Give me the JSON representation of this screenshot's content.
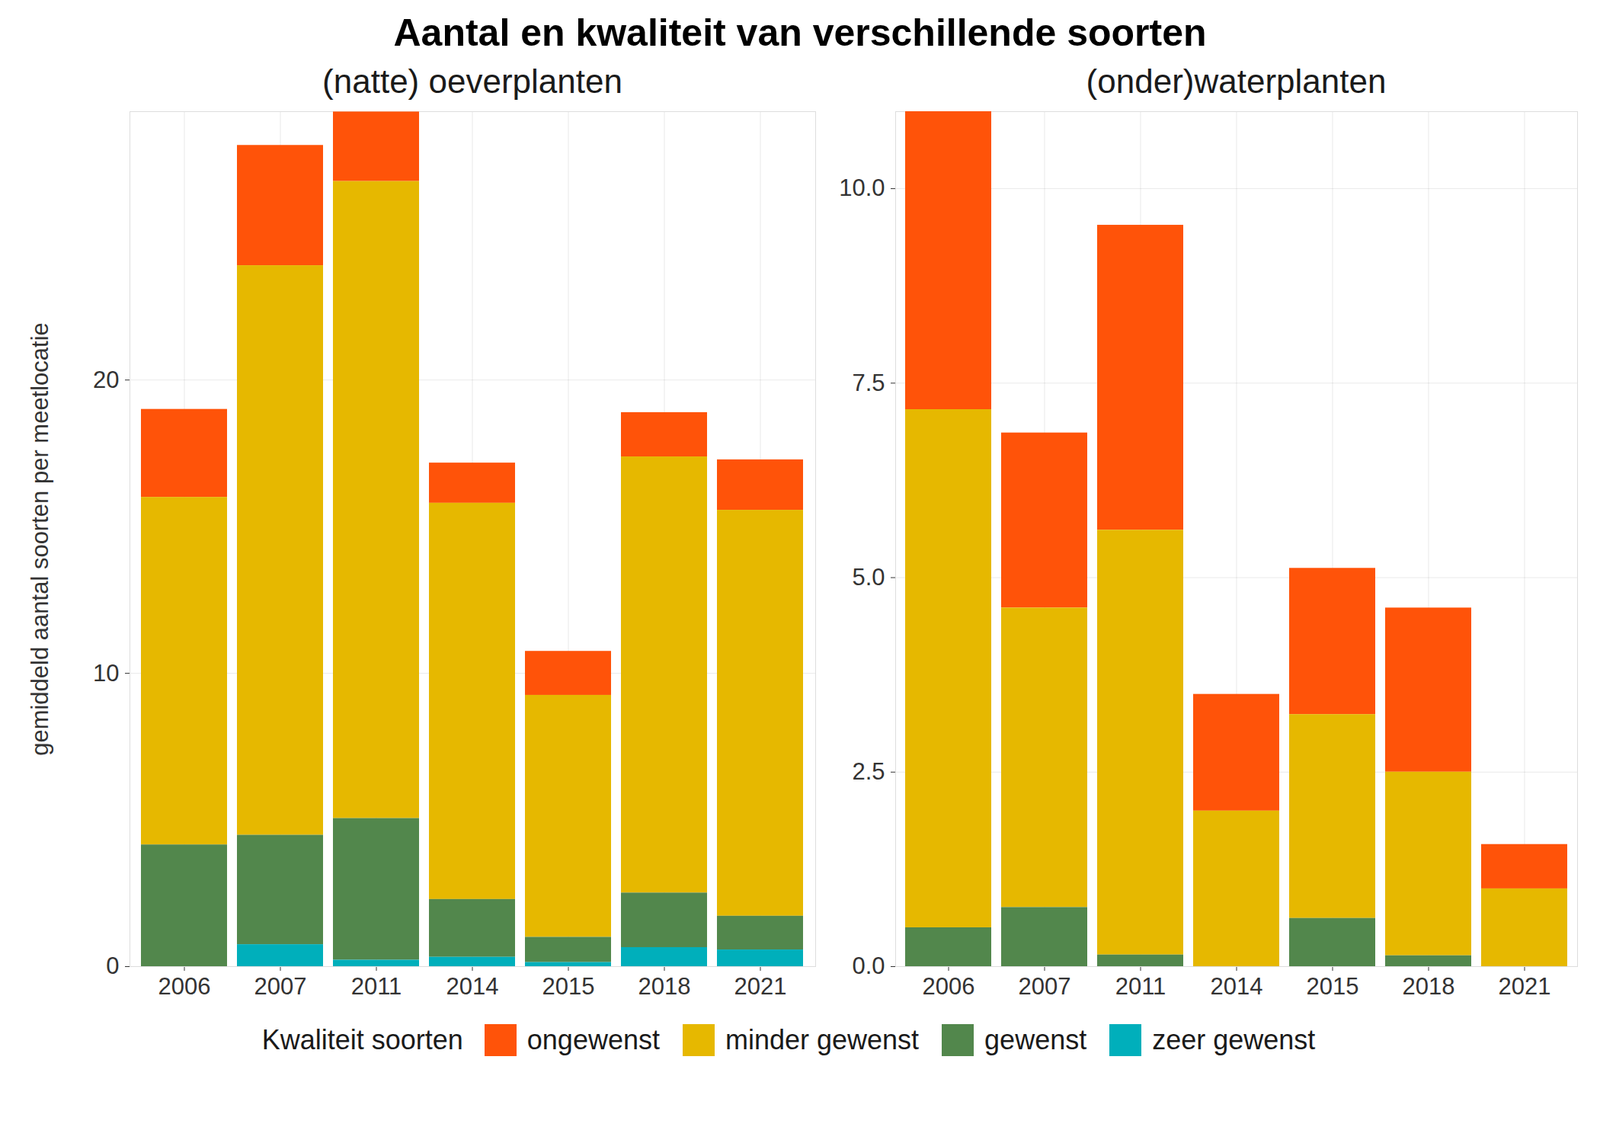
{
  "title": "Aantal en kwaliteit van verschillende soorten",
  "legend_title": "Kwaliteit soorten",
  "legend": "bottom",
  "chart_data": [
    {
      "type": "bar",
      "stacked": true,
      "grid": true,
      "subtitle": "(natte) oeverplanten",
      "y_label": "gemiddeld aantal soorten per meetlocatie",
      "categories": [
        "2006",
        "2007",
        "2011",
        "2014",
        "2015",
        "2018",
        "2021"
      ],
      "series": [
        {
          "name": "ongewenst",
          "color": "#FF5309",
          "values": [
            3.0,
            4.1,
            2.37,
            1.37,
            1.5,
            1.51,
            1.72
          ]
        },
        {
          "name": "minder gewenst",
          "color": "#E6B800",
          "values": [
            11.85,
            19.42,
            21.72,
            13.51,
            8.25,
            14.87,
            13.84
          ]
        },
        {
          "name": "gewenst",
          "color": "#52874C",
          "values": [
            4.15,
            3.73,
            4.83,
            1.97,
            0.86,
            1.86,
            1.15
          ]
        },
        {
          "name": "zeer gewenst",
          "color": "#00AFBB",
          "values": [
            0,
            0.75,
            0.22,
            0.32,
            0.14,
            0.65,
            0.57
          ]
        }
      ],
      "ylim": [
        0,
        29.15
      ],
      "yticks": [
        0,
        10,
        20
      ]
    },
    {
      "type": "bar",
      "stacked": true,
      "grid": true,
      "subtitle": "(onder)waterplanten",
      "categories": [
        "2006",
        "2007",
        "2011",
        "2014",
        "2015",
        "2018",
        "2021"
      ],
      "series": [
        {
          "name": "ongewenst",
          "color": "#FF5309",
          "values": [
            3.83,
            2.25,
            3.92,
            1.5,
            1.88,
            2.11,
            0.57
          ]
        },
        {
          "name": "minder gewenst",
          "color": "#E6B800",
          "values": [
            6.66,
            3.85,
            5.46,
            2.0,
            2.62,
            2.36,
            1.0
          ]
        },
        {
          "name": "gewenst",
          "color": "#52874C",
          "values": [
            0.5,
            0.76,
            0.15,
            0,
            0.62,
            0.14,
            0
          ]
        },
        {
          "name": "zeer gewenst",
          "color": "#00AFBB",
          "values": [
            0,
            0,
            0,
            0,
            0,
            0,
            0
          ]
        }
      ],
      "ylim": [
        0,
        10.99
      ],
      "yticks": [
        {
          "value": 0,
          "label": "0.0"
        },
        2.5,
        {
          "value": 5,
          "label": "5.0"
        },
        7.5,
        {
          "value": 10,
          "label": "10.0"
        }
      ]
    }
  ]
}
